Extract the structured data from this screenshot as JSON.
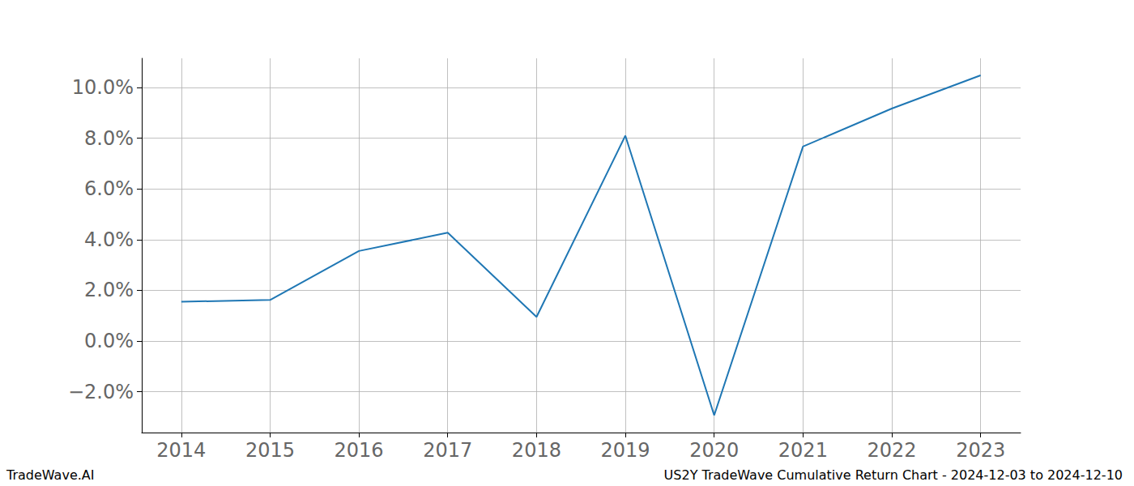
{
  "chart_data": {
    "type": "line",
    "annotations": [
      "TradeWave.AI",
      "US2Y TradeWave Cumulative Return Chart - 2024-12-03 to 2024-12-10"
    ],
    "x": [
      2014,
      2015,
      2016,
      2017,
      2018,
      2019,
      2020,
      2021,
      2022,
      2023
    ],
    "values": [
      1.55,
      1.62,
      3.55,
      4.27,
      0.95,
      8.1,
      -2.93,
      7.67,
      9.17,
      10.48
    ],
    "color": "#1f77b4",
    "xlim": [
      2013.555,
      2023.45
    ],
    "xticks": [
      2014,
      2015,
      2016,
      2017,
      2018,
      2019,
      2020,
      2021,
      2022,
      2023
    ],
    "ylim": [
      -3.61,
      11.15
    ],
    "yticks": [
      {
        "value": -2,
        "label": "−2.0%"
      },
      {
        "value": 0,
        "label": "0.0%"
      },
      {
        "value": 2,
        "label": "2.0%"
      },
      {
        "value": 4,
        "label": "4.0%"
      },
      {
        "value": 6,
        "label": "6.0%"
      },
      {
        "value": 8,
        "label": "8.0%"
      },
      {
        "value": 10,
        "label": "10.0%"
      }
    ],
    "grid": true
  }
}
